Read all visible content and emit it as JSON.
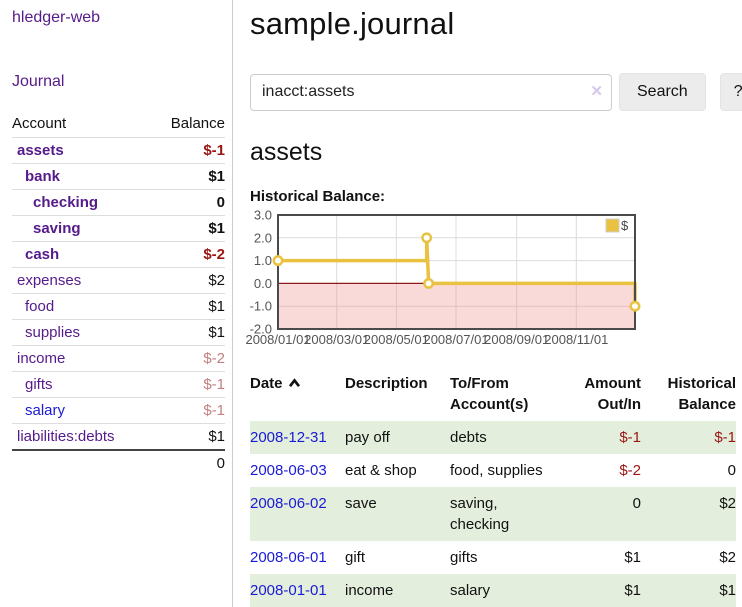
{
  "colors": {
    "link_purple": "#551a8b",
    "link_blue": "#1a1ad6",
    "negative_strong": "#9c1515",
    "negative_faded": "#c28080",
    "row_green": "#e3efdc",
    "button_bg": "#ececec",
    "clear_icon": "#d4c9e8",
    "chart_line_gold": "#e8c240",
    "chart_negative_fill": "#ef8a8a",
    "chart_zero_line": "#8b1a1a",
    "chart_frame": "#4a4a4a",
    "chart_grid": "#dcdcdc",
    "chart_axis_text": "#545454"
  },
  "sidebar": {
    "brand": "hledger-web",
    "journal_link": "Journal",
    "accounts_table": {
      "headers": {
        "account": "Account",
        "balance": "Balance"
      },
      "rows": [
        {
          "name": "assets",
          "level": 1,
          "emphasis": true,
          "balance": "$-1"
        },
        {
          "name": "bank",
          "level": 2,
          "emphasis": true,
          "balance": "$1"
        },
        {
          "name": "checking",
          "level": 3,
          "emphasis": true,
          "balance": "0"
        },
        {
          "name": "saving",
          "level": 3,
          "emphasis": true,
          "balance": "$1"
        },
        {
          "name": "cash",
          "level": 2,
          "emphasis": true,
          "balance": "$-2"
        },
        {
          "name": "expenses",
          "level": 1,
          "emphasis": false,
          "balance": "$2"
        },
        {
          "name": "food",
          "level": 2,
          "emphasis": false,
          "balance": "$1"
        },
        {
          "name": "supplies",
          "level": 2,
          "emphasis": false,
          "balance": "$1"
        },
        {
          "name": "income",
          "level": 1,
          "emphasis": false,
          "balance": "$-2"
        },
        {
          "name": "gifts",
          "level": 2,
          "emphasis": false,
          "balance": "$-1"
        },
        {
          "name": "salary",
          "level": 2,
          "emphasis": false,
          "balance": "$-1",
          "variant": "blue"
        },
        {
          "name": "liabilities:debts",
          "level": 1,
          "emphasis": false,
          "balance": "$1"
        }
      ],
      "total": "0"
    }
  },
  "main": {
    "title": "sample.journal",
    "search": {
      "query": "inacct:assets",
      "clear_icon": "✕",
      "search_button": "Search",
      "help_button": "?"
    },
    "account_heading": "assets",
    "section_label": "Historical Balance:",
    "register_table": {
      "headers": {
        "date": "Date",
        "description": "Description",
        "accounts": "To/From Account(s)",
        "amount": "Amount Out/In",
        "balance": "Historical Balance"
      },
      "rows": [
        {
          "date": "2008-12-31",
          "description": "pay off",
          "accounts": "debts",
          "amount": "$-1",
          "balance": "$-1"
        },
        {
          "date": "2008-06-03",
          "description": "eat & shop",
          "accounts": "food, supplies",
          "amount": "$-2",
          "balance": "0"
        },
        {
          "date": "2008-06-02",
          "description": "save",
          "accounts": "saving, checking",
          "amount": "0",
          "balance": "$2"
        },
        {
          "date": "2008-06-01",
          "description": "gift",
          "accounts": "gifts",
          "amount": "$1",
          "balance": "$2"
        },
        {
          "date": "2008-01-01",
          "description": "income",
          "accounts": "salary",
          "amount": "$1",
          "balance": "$1"
        }
      ]
    }
  },
  "chart_data": {
    "type": "line",
    "title": "Historical Balance:",
    "step": true,
    "series": [
      {
        "name": "$",
        "points": [
          [
            "2008-01-01",
            1
          ],
          [
            "2008-06-01",
            1
          ],
          [
            "2008-06-01",
            2
          ],
          [
            "2008-06-03",
            0
          ],
          [
            "2008-12-31",
            0
          ],
          [
            "2008-12-31",
            -1
          ]
        ],
        "markers": [
          [
            "2008-01-01",
            1
          ],
          [
            "2008-06-01",
            2
          ],
          [
            "2008-06-03",
            0
          ],
          [
            "2008-12-31",
            -1
          ]
        ]
      }
    ],
    "xrange": [
      "2008-01-01",
      "2008-12-31"
    ],
    "ylim": [
      -2,
      3
    ],
    "yticks": [
      3,
      2,
      1,
      0,
      -1,
      -2
    ],
    "ytick_labels": [
      "3.0",
      "2.0",
      "1.0",
      "0.0",
      "-1.0",
      "-2.0"
    ],
    "xtick_labels": [
      "2008/01/01",
      "2008/03/01",
      "2008/05/01",
      "2008/07/01",
      "2008/09/01",
      "2008/11/01"
    ],
    "legend": {
      "label": "$",
      "position": "top-right"
    },
    "grid": true,
    "negative_region_shaded": true
  }
}
